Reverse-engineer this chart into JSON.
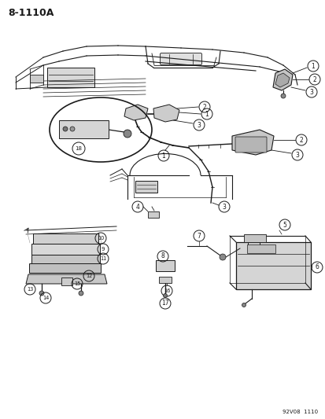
{
  "title": "8-1110A",
  "footer": "92V08  1110",
  "background_color": "#ffffff",
  "line_color": "#1a1a1a",
  "fig_width": 4.14,
  "fig_height": 5.33,
  "dpi": 100
}
